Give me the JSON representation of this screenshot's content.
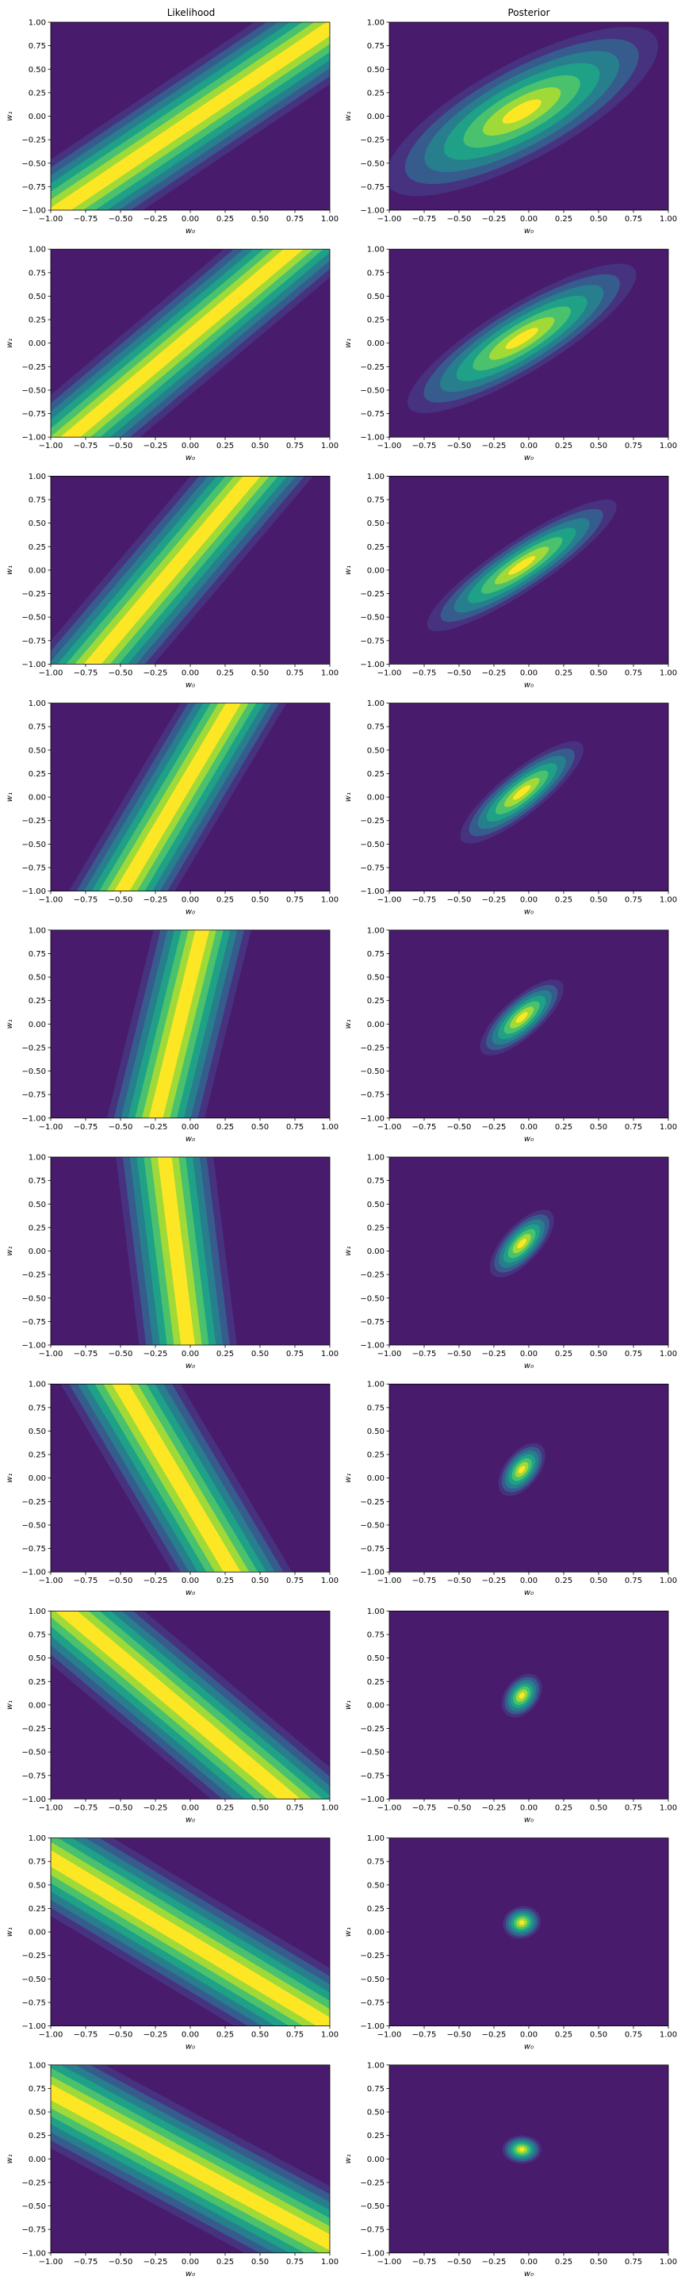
{
  "figure": {
    "column_titles": [
      "Likelihood",
      "Posterior"
    ],
    "xlabel": "w₀",
    "ylabel": "w₁",
    "ticks": [
      "−1.00",
      "−0.75",
      "−0.50",
      "−0.25",
      "0.00",
      "0.25",
      "0.50",
      "0.75",
      "1.00"
    ]
  },
  "colors": {
    "levels": [
      "#440154",
      "#46327e",
      "#365c8d",
      "#277f8e",
      "#1fa187",
      "#4ac16d",
      "#a0da39",
      "#fde725"
    ],
    "background": "#481b6d"
  },
  "chart_data": {
    "type": "contour",
    "grid": {
      "rows": 10,
      "columns": 2
    },
    "colormap": "viridis",
    "xlim": [
      -1,
      1
    ],
    "ylim": [
      -1,
      1
    ],
    "axis_labels": {
      "x": "w₀",
      "y": "w₁"
    },
    "column_titles": [
      "Likelihood",
      "Posterior"
    ],
    "likelihood_lines": [
      {
        "row": 1,
        "x_intercept": 0.06,
        "slope": 1.0,
        "band_halfwidth_x": 0.6
      },
      {
        "row": 2,
        "x_intercept": -0.06,
        "slope": 1.25,
        "band_halfwidth_x": 0.5
      },
      {
        "row": 3,
        "x_intercept": -0.13,
        "slope": 1.75,
        "band_halfwidth_x": 0.44
      },
      {
        "row": 4,
        "x_intercept": -0.09,
        "slope": 2.5,
        "band_halfwidth_x": 0.38
      },
      {
        "row": 5,
        "x_intercept": -0.08,
        "slope": 6.0,
        "band_halfwidth_x": 0.35
      },
      {
        "row": 6,
        "x_intercept": -0.1,
        "slope": -12.0,
        "band_halfwidth_x": 0.35
      },
      {
        "row": 7,
        "x_intercept": -0.1,
        "slope": -2.5,
        "band_halfwidth_x": 0.43
      },
      {
        "row": 8,
        "x_intercept": -0.09,
        "slope": -1.25,
        "band_halfwidth_x": 0.56
      },
      {
        "row": 9,
        "x_intercept": -0.12,
        "slope": -0.89,
        "band_halfwidth_x": 0.69
      },
      {
        "row": 10,
        "x_intercept": -0.11,
        "slope": -0.8,
        "band_halfwidth_x": 0.75
      }
    ],
    "posterior_ellipses": [
      {
        "row": 1,
        "center": [
          -0.05,
          0.05
        ],
        "major_axis_length": 2.5,
        "minor_axis_length": 0.9,
        "angle_deg": 42
      },
      {
        "row": 2,
        "center": [
          -0.05,
          0.05
        ],
        "major_axis_length": 2.2,
        "minor_axis_length": 0.62,
        "angle_deg": 44
      },
      {
        "row": 3,
        "center": [
          -0.05,
          0.05
        ],
        "major_axis_length": 1.9,
        "minor_axis_length": 0.45,
        "angle_deg": 46
      },
      {
        "row": 4,
        "center": [
          -0.05,
          0.05
        ],
        "major_axis_length": 1.35,
        "minor_axis_length": 0.38,
        "angle_deg": 52
      },
      {
        "row": 5,
        "center": [
          -0.05,
          0.07
        ],
        "major_axis_length": 0.95,
        "minor_axis_length": 0.33,
        "angle_deg": 56
      },
      {
        "row": 6,
        "center": [
          -0.05,
          0.08
        ],
        "major_axis_length": 0.8,
        "minor_axis_length": 0.3,
        "angle_deg": 62
      },
      {
        "row": 7,
        "center": [
          -0.05,
          0.09
        ],
        "major_axis_length": 0.6,
        "minor_axis_length": 0.27,
        "angle_deg": 68
      },
      {
        "row": 8,
        "center": [
          -0.05,
          0.1
        ],
        "major_axis_length": 0.48,
        "minor_axis_length": 0.26,
        "angle_deg": 72
      },
      {
        "row": 9,
        "center": [
          -0.05,
          0.1
        ],
        "major_axis_length": 0.35,
        "minor_axis_length": 0.27,
        "angle_deg": 80
      },
      {
        "row": 10,
        "center": [
          -0.05,
          0.1
        ],
        "major_axis_length": 0.3,
        "minor_axis_length": 0.28,
        "angle_deg": 90
      }
    ]
  }
}
